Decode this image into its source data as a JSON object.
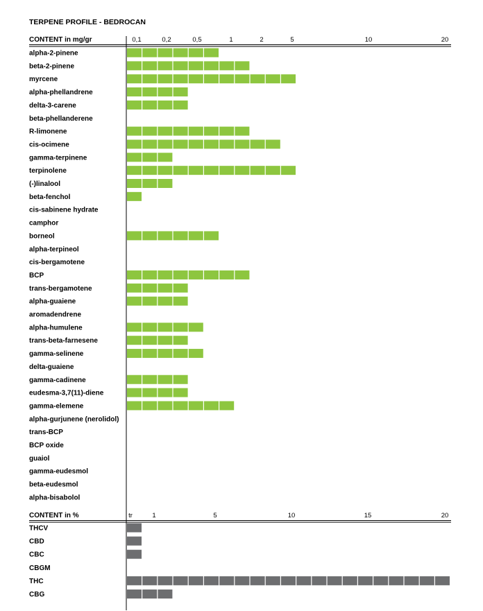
{
  "chart_data": [
    {
      "type": "bar",
      "orientation": "horizontal",
      "title": "TERPENE PROFILE - BEDROCAN",
      "axis_header": "CONTENT in mg/gr",
      "tick_labels": [
        "0,1",
        "0,2",
        "0,5",
        "1",
        "2",
        "5",
        "10",
        "20"
      ],
      "segments_max": 21,
      "color": "#8dc63f",
      "categories": [
        "alpha-2-pinene",
        "beta-2-pinene",
        "myrcene",
        "alpha-phellandrene",
        "delta-3-carene",
        "beta-phellanderene",
        "R-limonene",
        "cis-ocimene",
        "gamma-terpinene",
        "terpinolene",
        "(-)linalool",
        "beta-fenchol",
        "cis-sabinene hydrate",
        "camphor",
        "borneol",
        "alpha-terpineol",
        "cis-bergamotene",
        "BCP",
        "trans-bergamotene",
        "alpha-guaiene",
        "aromadendrene",
        "alpha-humulene",
        "trans-beta-farnesene",
        "gamma-selinene",
        "delta-guaiene",
        "gamma-cadinene",
        "eudesma-3,7(11)-diene",
        "gamma-elemene",
        "alpha-gurjunene (nerolidol)",
        "trans-BCP",
        "BCP oxide",
        "guaiol",
        "gamma-eudesmol",
        "beta-eudesmol",
        "alpha-bisabolol"
      ],
      "values": [
        6,
        8,
        11,
        4,
        4,
        0,
        8,
        10,
        3,
        11,
        3,
        1,
        0,
        0,
        6,
        0,
        0,
        8,
        4,
        4,
        0,
        5,
        4,
        5,
        0,
        4,
        4,
        7,
        0,
        0,
        0,
        0,
        0,
        0,
        0
      ],
      "value_unit": "bar segments"
    },
    {
      "type": "bar",
      "orientation": "horizontal",
      "axis_header": "CONTENT in %",
      "tick_labels": [
        "tr",
        "1",
        "5",
        "10",
        "15",
        "20"
      ],
      "segments_max": 21,
      "color": "#6d6e70",
      "categories": [
        "THCV",
        "CBD",
        "CBC",
        "CBGM",
        "THC",
        "CBG"
      ],
      "values": [
        1,
        1,
        1,
        0,
        21,
        3
      ],
      "value_unit": "bar segments"
    }
  ]
}
